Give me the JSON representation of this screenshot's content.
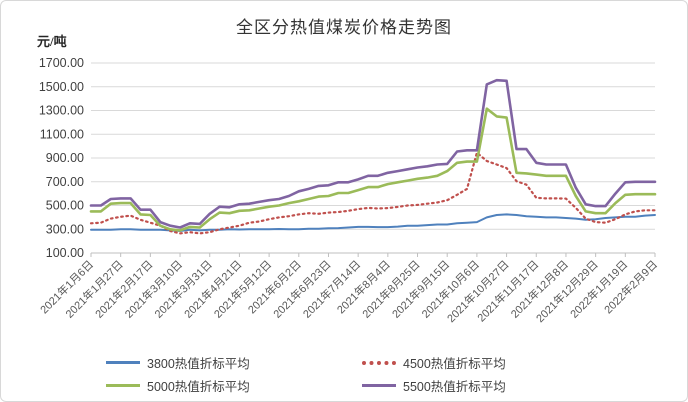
{
  "page": {
    "title": "全区分热值煤炭价格走势图",
    "y_unit": "元/吨"
  },
  "chart_data": {
    "type": "line",
    "title": "全区分热值煤炭价格走势图",
    "ylabel": "元/吨",
    "ylim": [
      100,
      1700
    ],
    "ytick_step": 200,
    "ytick_decimals": 2,
    "grid": true,
    "legend_position": "bottom",
    "points_per_label": 3,
    "x_labels": [
      "2021年1月6日",
      "2021年1月27日",
      "2021年2月17日",
      "2021年3月10日",
      "2021年3月31日",
      "2021年4月21日",
      "2021年5月12日",
      "2021年6月2日",
      "2021年6月23日",
      "2021年7月14日",
      "2021年8月4日",
      "2021年8月25日",
      "2021年9月15日",
      "2021年10月6日",
      "2021年10月27日",
      "2021年11月17日",
      "2021年12月8日",
      "2021年12月29日",
      "2022年1月19日",
      "2022年2月9日"
    ],
    "series": [
      {
        "name": "3800热值折标平均",
        "color": "#4F81BD",
        "line_style": "solid",
        "values": [
          295,
          295,
          295,
          300,
          300,
          295,
          295,
          295,
          290,
          285,
          295,
          290,
          295,
          295,
          300,
          298,
          300,
          300,
          300,
          302,
          300,
          300,
          305,
          305,
          308,
          310,
          315,
          320,
          320,
          318,
          318,
          322,
          330,
          330,
          335,
          340,
          340,
          350,
          355,
          360,
          400,
          420,
          425,
          420,
          410,
          405,
          400,
          400,
          395,
          390,
          380,
          385,
          395,
          400,
          405,
          405,
          415,
          420
        ]
      },
      {
        "name": "4500热值折标平均",
        "color": "#C0504D",
        "line_style": "dotted",
        "values": [
          350,
          355,
          390,
          405,
          415,
          380,
          355,
          330,
          285,
          265,
          275,
          265,
          275,
          300,
          315,
          330,
          355,
          365,
          385,
          400,
          410,
          425,
          435,
          430,
          440,
          445,
          455,
          470,
          480,
          475,
          478,
          488,
          500,
          505,
          515,
          525,
          545,
          590,
          640,
          945,
          875,
          845,
          815,
          705,
          675,
          565,
          560,
          560,
          558,
          480,
          390,
          360,
          355,
          385,
          425,
          450,
          460,
          460
        ]
      },
      {
        "name": "5000热值折标平均",
        "color": "#9BBB59",
        "line_style": "solid",
        "values": [
          450,
          450,
          515,
          520,
          520,
          425,
          420,
          330,
          300,
          290,
          320,
          315,
          385,
          440,
          435,
          455,
          460,
          475,
          490,
          500,
          520,
          535,
          555,
          575,
          580,
          605,
          605,
          630,
          655,
          655,
          680,
          695,
          710,
          725,
          735,
          750,
          790,
          860,
          870,
          870,
          1315,
          1250,
          1240,
          775,
          770,
          760,
          750,
          750,
          750,
          580,
          450,
          435,
          435,
          520,
          590,
          595,
          595,
          595
        ]
      },
      {
        "name": "5500热值折标平均",
        "color": "#8064A2",
        "line_style": "solid",
        "values": [
          500,
          500,
          555,
          560,
          560,
          465,
          465,
          360,
          330,
          315,
          350,
          345,
          430,
          490,
          485,
          510,
          515,
          530,
          545,
          555,
          580,
          620,
          640,
          665,
          670,
          695,
          695,
          720,
          750,
          750,
          775,
          790,
          805,
          820,
          830,
          845,
          850,
          955,
          965,
          965,
          1520,
          1555,
          1550,
          975,
          975,
          860,
          845,
          845,
          845,
          650,
          510,
          495,
          495,
          600,
          695,
          700,
          700,
          700
        ]
      }
    ]
  }
}
